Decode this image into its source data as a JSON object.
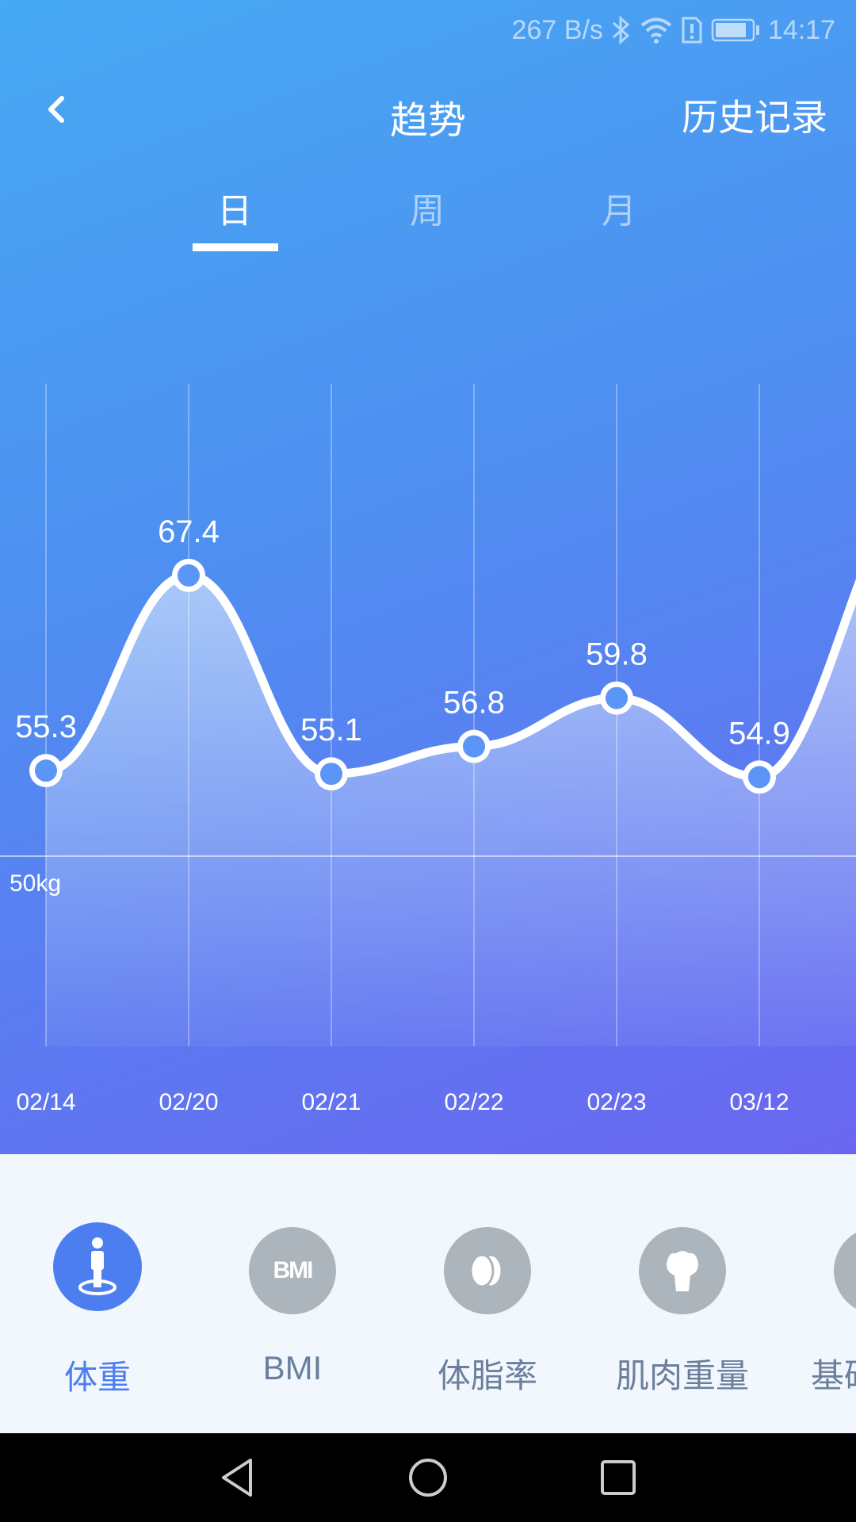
{
  "status_bar": {
    "net_speed": "267 B/s",
    "time": "14:17",
    "icons": [
      "bluetooth-icon",
      "wifi-icon",
      "sim-alert-icon",
      "battery-icon"
    ]
  },
  "header": {
    "title": "趋势",
    "history_label": "历史记录",
    "back_icon": "chevron-left-icon"
  },
  "tabs": [
    {
      "label": "日",
      "active": true
    },
    {
      "label": "周",
      "active": false
    },
    {
      "label": "月",
      "active": false
    }
  ],
  "colors": {
    "gradient_start": "#46a9f3",
    "gradient_end": "#6a66f1",
    "active": "#4c7ef0",
    "inactive_icon": "#acb5bb",
    "inactive_label": "#6b7f9c",
    "point_fill": "#5b95f5"
  },
  "chart_data": {
    "type": "line",
    "x": [
      "02/14",
      "02/20",
      "02/21",
      "02/22",
      "02/23",
      "03/12"
    ],
    "values": [
      55.3,
      67.4,
      55.1,
      56.8,
      59.8,
      54.9
    ],
    "data_labels": [
      "55.3",
      "67.4",
      "55.1",
      "56.8",
      "59.8",
      "54.9"
    ],
    "reference_line": {
      "value": 50,
      "label": "50kg"
    },
    "grid": "vertical",
    "area_fill": true,
    "continues_right": true
  },
  "metrics": [
    {
      "label": "体重",
      "icon": "person-scale-icon",
      "active": true
    },
    {
      "label": "BMI",
      "icon": "bmi-icon",
      "icon_text": "BMI",
      "active": false
    },
    {
      "label": "体脂率",
      "icon": "fat-drops-icon",
      "active": false
    },
    {
      "label": "肌肉重量",
      "icon": "muscle-icon",
      "active": false
    },
    {
      "label": "基础代谢",
      "icon": "metabolism-icon",
      "active": false
    }
  ],
  "navbar": {
    "icons": [
      "back-triangle-icon",
      "home-circle-icon",
      "recents-square-icon"
    ]
  }
}
